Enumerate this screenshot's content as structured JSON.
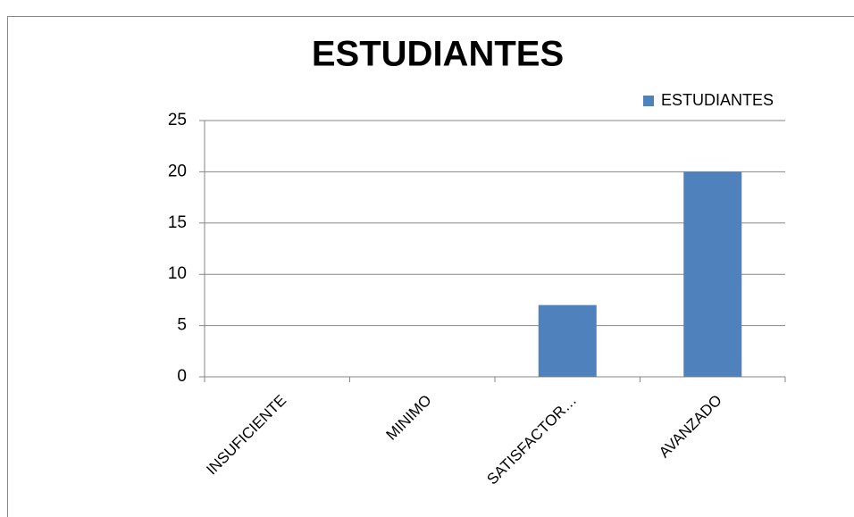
{
  "chart_data": {
    "type": "bar",
    "title": "ESTUDIANTES",
    "categories": [
      "INSUFICIENTE",
      "MINIMO",
      "SATISFACTOR…",
      "AVANZADO"
    ],
    "series": [
      {
        "name": "ESTUDIANTES",
        "color": "#4f81bd",
        "values": [
          0,
          0,
          7,
          20
        ]
      }
    ],
    "ylim": [
      0,
      25
    ],
    "yticks": [
      0,
      5,
      10,
      15,
      20,
      25
    ],
    "grid": true,
    "legend": "top-right"
  }
}
